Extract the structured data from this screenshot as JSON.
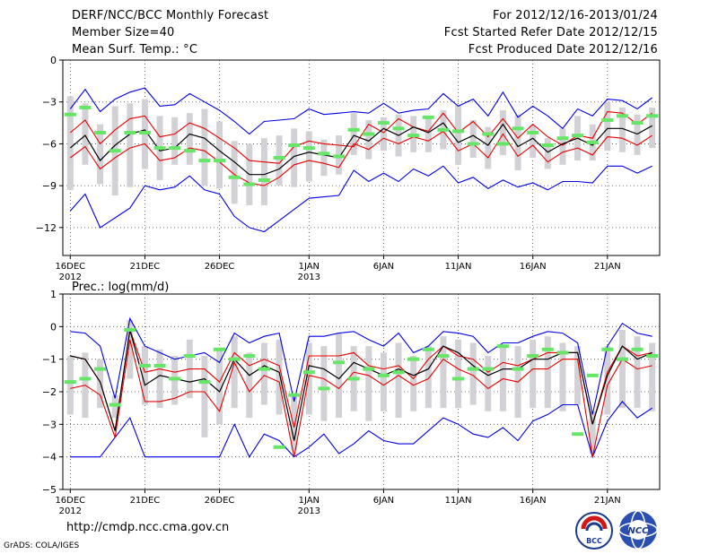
{
  "header": {
    "title": "DERF/NCC/BCC Monthly Forecast",
    "member_size": "Member Size=40",
    "variable_1": "Mean Surf. Temp.: °C",
    "forecast_period": "For 2012/12/16-2013/01/24",
    "started_date": "Fcst Started Refer Date 2012/12/15",
    "produced_date": "Fcst Produced Date 2012/12/16"
  },
  "footer": {
    "url": "http://cmdp.ncc.cma.gov.cn",
    "credit": "GrADS: COLA/IGES",
    "logo_bcc_text": "BCC",
    "logo_ncc_text": "NCC"
  },
  "colors": {
    "ensemble_mean": "#000000",
    "spread": "#e60000",
    "extremes": "#0000e6",
    "observed": "#66e666",
    "box": "#d2d2d6",
    "grid": "#444444"
  },
  "chart_data": [
    {
      "type": "line",
      "name": "temperature",
      "title": "Mean Surf. Temp.: °C",
      "ylim": [
        -14,
        0
      ],
      "yticks": [
        0,
        -3,
        -6,
        -9,
        -12
      ],
      "ytick_labels": [
        "0",
        "−3",
        "−6",
        "−9",
        "−12"
      ],
      "xlim": [
        -0.5,
        39.5
      ],
      "xtick_index": [
        0,
        5,
        10,
        16,
        21,
        26,
        31,
        36
      ],
      "xtick_labels": [
        "16DEC",
        "21DEC",
        "26DEC",
        "1JAN",
        "6JAN",
        "11JAN",
        "16JAN",
        "21JAN"
      ],
      "xtick_sublabels": [
        "2012",
        "",
        "",
        "2013",
        "",
        "",
        "",
        ""
      ],
      "x": [
        "12/16",
        "12/17",
        "12/18",
        "12/19",
        "12/20",
        "12/21",
        "12/22",
        "12/23",
        "12/24",
        "12/25",
        "12/26",
        "12/27",
        "12/28",
        "12/29",
        "12/30",
        "12/31",
        "01/01",
        "01/02",
        "01/03",
        "01/04",
        "01/05",
        "01/06",
        "01/07",
        "01/08",
        "01/09",
        "01/10",
        "01/11",
        "01/12",
        "01/13",
        "01/14",
        "01/15",
        "01/16",
        "01/17",
        "01/18",
        "01/19",
        "01/20",
        "01/21",
        "01/22",
        "01/23",
        "01/24"
      ],
      "series": [
        {
          "name": "max",
          "values": [
            -3.5,
            -2.1,
            -3.7,
            -2.8,
            -2.3,
            -2.0,
            -3.3,
            -3.2,
            -2.4,
            -3.0,
            -3.6,
            -4.4,
            -5.3,
            -4.4,
            -4.3,
            -4.2,
            -3.5,
            -3.9,
            -3.8,
            -3.7,
            -3.8,
            -3.1,
            -3.8,
            -3.6,
            -3.5,
            -2.4,
            -3.3,
            -2.8,
            -4.0,
            -2.3,
            -4.1,
            -3.3,
            -4.0,
            -4.9,
            -3.5,
            -4.0,
            -2.8,
            -2.9,
            -3.5,
            -2.7
          ]
        },
        {
          "name": "mean_plus_spread",
          "values": [
            -5.2,
            -4.3,
            -6.0,
            -5.0,
            -4.2,
            -4.0,
            -5.5,
            -5.3,
            -4.5,
            -4.9,
            -5.6,
            -6.3,
            -7.2,
            -7.3,
            -7.4,
            -6.2,
            -5.8,
            -6.0,
            -6.1,
            -6.2,
            -4.6,
            -5.2,
            -4.2,
            -4.8,
            -5.1,
            -3.8,
            -5.2,
            -4.4,
            -5.5,
            -4.2,
            -5.6,
            -4.6,
            -5.5,
            -6.1,
            -5.4,
            -5.6,
            -3.7,
            -3.8,
            -4.6,
            -3.8
          ]
        },
        {
          "name": "mean",
          "values": [
            -6.3,
            -5.4,
            -7.2,
            -6.1,
            -5.3,
            -5.0,
            -6.5,
            -6.3,
            -5.3,
            -5.6,
            -6.5,
            -7.3,
            -8.2,
            -8.2,
            -7.8,
            -6.9,
            -6.6,
            -6.8,
            -7.0,
            -5.4,
            -5.8,
            -4.9,
            -5.4,
            -4.8,
            -5.2,
            -4.5,
            -5.9,
            -5.4,
            -6.1,
            -4.6,
            -6.2,
            -5.6,
            -6.6,
            -6.0,
            -5.6,
            -6.1,
            -4.9,
            -4.9,
            -5.3,
            -4.7
          ]
        },
        {
          "name": "mean_minus_spread",
          "values": [
            -7.0,
            -6.2,
            -7.8,
            -7.0,
            -6.3,
            -6.0,
            -7.2,
            -7.0,
            -6.3,
            -6.5,
            -7.3,
            -8.2,
            -8.8,
            -9.0,
            -8.4,
            -7.5,
            -7.2,
            -7.4,
            -7.7,
            -6.0,
            -6.4,
            -5.6,
            -6.0,
            -5.5,
            -5.8,
            -5.1,
            -6.5,
            -6.0,
            -7.0,
            -5.3,
            -6.9,
            -6.1,
            -7.3,
            -6.6,
            -6.3,
            -6.8,
            -5.5,
            -5.6,
            -6.1,
            -5.4
          ]
        },
        {
          "name": "min",
          "values": [
            -10.8,
            -9.6,
            -12.0,
            -11.3,
            -10.6,
            -9.0,
            -9.3,
            -9.1,
            -8.3,
            -9.3,
            -9.6,
            -11.2,
            -12.0,
            -12.3,
            -11.5,
            -10.7,
            -9.9,
            -9.8,
            -9.7,
            -7.9,
            -8.7,
            -8.1,
            -8.7,
            -7.8,
            -8.3,
            -7.6,
            -8.8,
            -8.4,
            -9.2,
            -8.6,
            -9.1,
            -8.8,
            -9.3,
            -8.7,
            -8.7,
            -8.8,
            -7.6,
            -7.6,
            -8.1,
            -7.6
          ]
        },
        {
          "name": "observed",
          "values": [
            -3.9,
            -3.4,
            -5.2,
            -6.5,
            -5.2,
            -5.2,
            -6.3,
            -6.3,
            -6.5,
            -7.2,
            -7.2,
            -8.4,
            -8.9,
            -8.6,
            -7.0,
            -6.1,
            -6.3,
            -6.7,
            -6.9,
            -5.0,
            -5.3,
            -4.5,
            -4.9,
            -5.4,
            -4.1,
            -5.0,
            -5.1,
            -6.0,
            -5.3,
            -6.0,
            -4.9,
            -5.2,
            -6.1,
            -5.6,
            -5.4,
            -5.9,
            -4.3,
            -4.0,
            -4.5,
            -4.0
          ]
        },
        {
          "name": "box_high",
          "values": [
            -2.6,
            -3.1,
            -4.6,
            -3.3,
            -3.1,
            -2.8,
            -4.0,
            -4.1,
            -3.8,
            -3.5,
            -4.4,
            -5.8,
            -6.0,
            -5.6,
            -5.4,
            -4.9,
            -5.1,
            -5.7,
            -5.4,
            -3.8,
            -4.3,
            -4.1,
            -3.9,
            -4.0,
            -4.2,
            -3.6,
            -3.2,
            -4.3,
            -4.8,
            -3.6,
            -3.9,
            -4.7,
            -5.6,
            -4.9,
            -4.0,
            -4.6,
            -3.0,
            -3.4,
            -3.9,
            -3.4
          ]
        },
        {
          "name": "box_low",
          "values": [
            -9.3,
            -7.5,
            -8.9,
            -9.7,
            -9.1,
            -7.8,
            -8.6,
            -7.5,
            -7.5,
            -9.0,
            -9.2,
            -10.3,
            -10.4,
            -10.4,
            -9.0,
            -9.1,
            -8.7,
            -8.3,
            -8.2,
            -6.8,
            -7.1,
            -6.5,
            -6.9,
            -6.6,
            -6.6,
            -6.4,
            -7.5,
            -7.0,
            -7.8,
            -6.8,
            -7.9,
            -7.0,
            -7.8,
            -7.5,
            -7.2,
            -7.2,
            -6.5,
            -6.6,
            -6.8,
            -6.3
          ]
        }
      ]
    },
    {
      "type": "line",
      "name": "precipitation",
      "title": "Prec.: log(mm/d)",
      "ylim": [
        -5,
        1
      ],
      "yticks": [
        1,
        0,
        -1,
        -2,
        -3,
        -4,
        -5
      ],
      "ytick_labels": [
        "1",
        "0",
        "−1",
        "−2",
        "−3",
        "−4",
        "−5"
      ],
      "xlim": [
        -0.5,
        39.5
      ],
      "xtick_index": [
        0,
        5,
        10,
        16,
        21,
        26,
        31,
        36
      ],
      "xtick_labels": [
        "16DEC",
        "21DEC",
        "26DEC",
        "1JAN",
        "6JAN",
        "11JAN",
        "16JAN",
        "21JAN"
      ],
      "xtick_sublabels": [
        "2012",
        "",
        "",
        "2013",
        "",
        "",
        "",
        ""
      ],
      "x": [
        "12/16",
        "12/17",
        "12/18",
        "12/19",
        "12/20",
        "12/21",
        "12/22",
        "12/23",
        "12/24",
        "12/25",
        "12/26",
        "12/27",
        "12/28",
        "12/29",
        "12/30",
        "12/31",
        "01/01",
        "01/02",
        "01/03",
        "01/04",
        "01/05",
        "01/06",
        "01/07",
        "01/08",
        "01/09",
        "01/10",
        "01/11",
        "01/12",
        "01/13",
        "01/14",
        "01/15",
        "01/16",
        "01/17",
        "01/18",
        "01/19",
        "01/20",
        "01/21",
        "01/22",
        "01/23",
        "01/24"
      ],
      "series": [
        {
          "name": "max",
          "values": [
            -0.15,
            -0.2,
            -0.6,
            -2.2,
            0.25,
            -0.6,
            -0.8,
            -1.0,
            -0.9,
            -0.8,
            -1.1,
            -0.2,
            -0.5,
            -0.3,
            -0.2,
            -2.3,
            -0.3,
            -0.3,
            -0.2,
            -0.15,
            -0.4,
            -0.6,
            -0.2,
            -0.8,
            -0.6,
            -0.15,
            -0.2,
            -0.3,
            -0.8,
            -0.5,
            -0.5,
            -0.3,
            -0.15,
            -0.2,
            -0.5,
            -2.7,
            -0.6,
            0.1,
            -0.2,
            -0.3
          ]
        },
        {
          "name": "mean_plus_spread",
          "values": [
            -0.9,
            -1.0,
            -1.7,
            -3.2,
            -0.1,
            -1.4,
            -1.3,
            -1.4,
            -1.3,
            -1.3,
            -1.7,
            -0.8,
            -1.2,
            -1.0,
            -1.2,
            -3.1,
            -0.9,
            -0.9,
            -0.9,
            -0.8,
            -1.2,
            -1.3,
            -1.2,
            -1.6,
            -1.0,
            -0.6,
            -0.9,
            -1.0,
            -1.4,
            -1.1,
            -1.2,
            -1.0,
            -0.8,
            -0.8,
            -0.8,
            -3.0,
            -1.4,
            -0.6,
            -0.9,
            -0.8
          ]
        },
        {
          "name": "mean",
          "values": [
            -0.9,
            -1.0,
            -1.7,
            -3.2,
            -0.1,
            -1.8,
            -1.5,
            -1.6,
            -1.7,
            -1.6,
            -2.0,
            -1.0,
            -1.5,
            -1.2,
            -1.4,
            -3.5,
            -1.2,
            -1.3,
            -1.6,
            -1.1,
            -1.3,
            -1.5,
            -1.3,
            -1.5,
            -1.3,
            -0.6,
            -0.8,
            -1.2,
            -1.5,
            -1.3,
            -1.3,
            -1.0,
            -1.0,
            -0.8,
            -0.8,
            -3.0,
            -1.5,
            -0.6,
            -1.0,
            -0.8
          ]
        },
        {
          "name": "mean_minus_spread",
          "values": [
            -1.9,
            -1.8,
            -2.1,
            -3.4,
            -0.4,
            -2.3,
            -2.3,
            -2.2,
            -2.0,
            -2.0,
            -2.6,
            -1.1,
            -2.0,
            -1.5,
            -1.7,
            -4.0,
            -1.5,
            -1.6,
            -1.9,
            -1.4,
            -1.5,
            -1.8,
            -1.5,
            -1.8,
            -1.6,
            -1.0,
            -1.3,
            -1.5,
            -1.9,
            -1.6,
            -1.7,
            -1.3,
            -1.3,
            -1.0,
            -1.0,
            -4.0,
            -1.8,
            -1.0,
            -1.3,
            -1.2
          ]
        },
        {
          "name": "min",
          "values": [
            -4.0,
            -4.0,
            -4.0,
            -3.4,
            -2.8,
            -4.0,
            -4.0,
            -4.0,
            -4.0,
            -4.0,
            -4.0,
            -3.0,
            -4.0,
            -3.3,
            -3.5,
            -4.0,
            -3.7,
            -3.3,
            -3.9,
            -3.6,
            -3.2,
            -3.5,
            -3.6,
            -3.6,
            -3.2,
            -2.8,
            -3.0,
            -3.3,
            -3.4,
            -3.1,
            -3.5,
            -2.9,
            -2.7,
            -2.4,
            -2.4,
            -4.0,
            -2.9,
            -2.3,
            -2.8,
            -2.5
          ]
        },
        {
          "name": "observed",
          "values": [
            -1.7,
            -1.6,
            -1.3,
            -2.4,
            -0.1,
            -1.2,
            -1.2,
            -1.6,
            -0.9,
            -1.7,
            -0.7,
            -1.0,
            -0.9,
            -1.3,
            -3.7,
            -2.1,
            -1.4,
            -1.9,
            -1.1,
            -1.6,
            -1.3,
            -1.5,
            -1.4,
            -1.0,
            -0.7,
            -0.9,
            -1.6,
            -1.3,
            -1.3,
            -0.6,
            -1.3,
            -0.9,
            -0.7,
            -0.8,
            -3.3,
            -1.5,
            -0.7,
            -1.0,
            -0.7,
            -0.9
          ]
        },
        {
          "name": "box_high",
          "values": [
            -0.9,
            -0.8,
            -1.0,
            -2.1,
            0.2,
            -0.6,
            -0.7,
            -0.9,
            -0.4,
            -0.9,
            -0.7,
            -0.3,
            -0.8,
            -0.5,
            -0.4,
            -2.1,
            -0.5,
            -0.6,
            -0.2,
            -0.6,
            -0.6,
            -0.8,
            -0.5,
            -0.9,
            -0.6,
            -0.3,
            -0.4,
            -0.5,
            -0.9,
            -0.6,
            -0.6,
            -0.4,
            -0.3,
            -0.5,
            -0.6,
            -2.6,
            -0.6,
            -0.1,
            -0.3,
            -0.5
          ]
        },
        {
          "name": "box_low",
          "values": [
            -2.7,
            -2.8,
            -2.5,
            -2.8,
            -1.6,
            -2.4,
            -2.5,
            -2.4,
            -2.2,
            -3.4,
            -3.0,
            -2.5,
            -2.8,
            -2.4,
            -2.7,
            -3.8,
            -2.7,
            -2.9,
            -2.8,
            -2.6,
            -2.9,
            -2.6,
            -2.8,
            -2.6,
            -2.5,
            -2.5,
            -2.5,
            -2.4,
            -2.6,
            -2.6,
            -2.8,
            -2.5,
            -2.5,
            -2.6,
            -2.4,
            -3.9,
            -2.7,
            -2.5,
            -2.5,
            -2.6
          ]
        }
      ]
    }
  ]
}
